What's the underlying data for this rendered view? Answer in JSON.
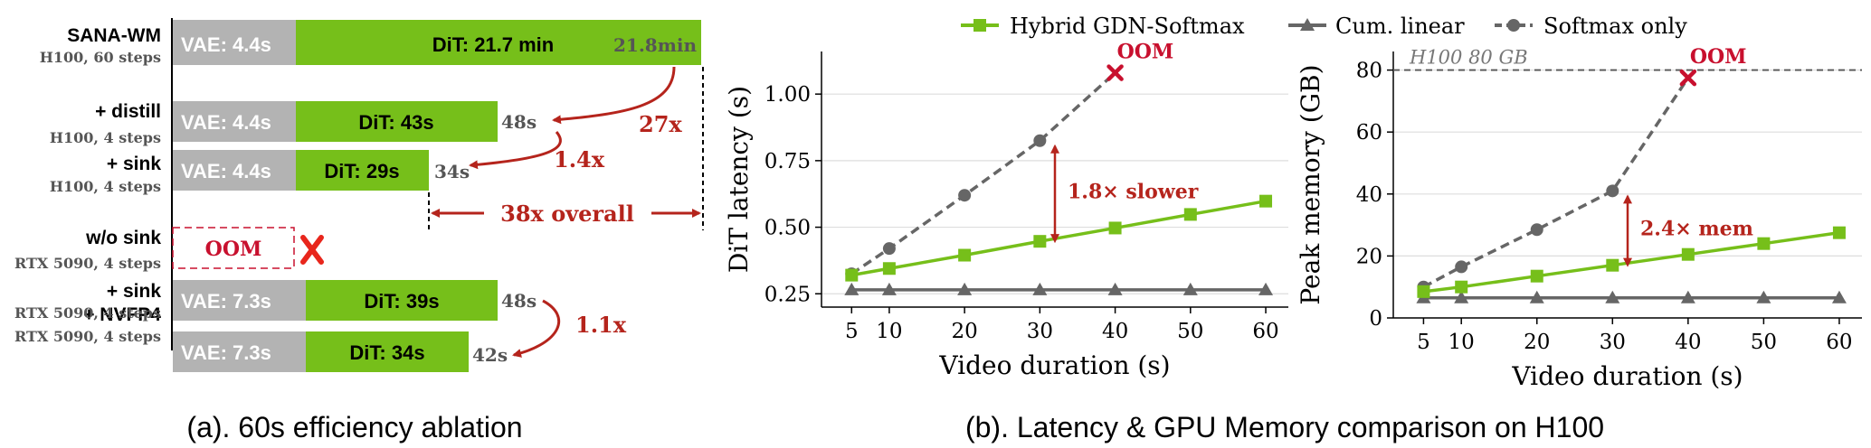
{
  "colors": {
    "vae": "#b3b3b3",
    "dit": "#76bf1a",
    "annotation": "#b5241c",
    "oom_red": "#c8102e",
    "cross": "#e8261c",
    "hybrid": "#76bf1a",
    "linear": "#666666",
    "softmax": "#666666",
    "sink_text": "#555555",
    "grid": "#dddddd"
  },
  "panel_a": {
    "caption": "(a). 60s efficiency ablation",
    "rows": [
      {
        "name": "SANA-WM",
        "sub": "H100, 60 steps",
        "vae_label": "VAE: 4.4s",
        "vae_s": 4.4,
        "dit_label": "DiT: 21.7 min",
        "total_label": "21.8min",
        "total_s": 1308
      },
      {
        "name": "+ distill",
        "sub": "H100, 4 steps",
        "vae_label": "VAE: 4.4s",
        "vae_s": 4.4,
        "dit_label": "DiT: 43s",
        "dit_s": 43,
        "total_label": "48s",
        "total_s": 48
      },
      {
        "name": "+ sink",
        "sub": "H100, 4 steps",
        "vae_label": "VAE: 4.4s",
        "vae_s": 4.4,
        "dit_label": "DiT: 29s",
        "dit_s": 29,
        "total_label": "34s",
        "total_s": 34
      },
      {
        "name": "w/o sink",
        "sub": "RTX 5090, 4 steps",
        "oom_label": "OOM"
      },
      {
        "name": "+ sink",
        "sub": "RTX 5090, 4 steps",
        "vae_label": "VAE: 7.3s",
        "vae_s": 7.3,
        "dit_label": "DiT: 39s",
        "dit_s": 39,
        "total_label": "48s",
        "total_s": 48
      },
      {
        "name": "+ NVFP4",
        "sub": "RTX 5090, 4 steps",
        "vae_label": "VAE: 7.3s",
        "vae_s": 7.3,
        "dit_label": "DiT: 34s",
        "dit_s": 34,
        "total_label": "42s",
        "total_s": 42
      }
    ],
    "speedups": {
      "a": "27x",
      "b": "1.4x",
      "overall": "38x overall",
      "c": "1.1x"
    }
  },
  "panel_b": {
    "caption": "(b). Latency & GPU Memory comparison on H100",
    "legend": [
      "Hybrid GDN-Softmax",
      "Cum. linear",
      "Softmax only"
    ]
  },
  "chart_data": [
    {
      "type": "line",
      "xlabel": "Video duration (s)",
      "ylabel": "DiT latency (s)",
      "x_ticks": [
        5,
        10,
        20,
        30,
        40,
        50,
        60
      ],
      "y_ticks": [
        0.25,
        0.5,
        0.75,
        1.0
      ],
      "y_tick_labels": [
        "0.25",
        "0.50",
        "0.75",
        "1.00"
      ],
      "xlim": [
        1,
        63
      ],
      "ylim": [
        0.2,
        1.16
      ],
      "grid": "horizontal",
      "series": [
        {
          "name": "Hybrid GDN-Softmax",
          "x": [
            5,
            10,
            20,
            30,
            40,
            50,
            60
          ],
          "y": [
            0.32,
            0.345,
            0.395,
            0.447,
            0.497,
            0.548,
            0.598
          ]
        },
        {
          "name": "Cum. linear",
          "x": [
            5,
            10,
            20,
            30,
            40,
            50,
            60
          ],
          "y": [
            0.265,
            0.265,
            0.265,
            0.265,
            0.265,
            0.265,
            0.265
          ]
        },
        {
          "name": "Softmax only",
          "x": [
            5,
            10,
            20,
            30
          ],
          "y": [
            0.325,
            0.42,
            0.62,
            0.825
          ],
          "oom_x": 40,
          "oom_y": 1.08
        }
      ],
      "oom_label": "OOM",
      "annotation": {
        "text": "1.8× slower",
        "x": 32,
        "y_from": 0.447,
        "y_to": 0.825
      }
    },
    {
      "type": "line",
      "xlabel": "Video duration (s)",
      "ylabel": "Peak memory (GB)",
      "x_ticks": [
        5,
        10,
        20,
        30,
        40,
        50,
        60
      ],
      "y_ticks": [
        0,
        20,
        40,
        60,
        80
      ],
      "y_tick_labels": [
        "0",
        "20",
        "40",
        "60",
        "80"
      ],
      "xlim": [
        1,
        63
      ],
      "ylim": [
        0,
        86
      ],
      "grid": "horizontal",
      "series": [
        {
          "name": "Hybrid GDN-Softmax",
          "x": [
            5,
            10,
            20,
            30,
            40,
            50,
            60
          ],
          "y": [
            8.5,
            10,
            13.5,
            17,
            20.5,
            24,
            27.5
          ]
        },
        {
          "name": "Cum. linear",
          "x": [
            5,
            10,
            20,
            30,
            40,
            50,
            60
          ],
          "y": [
            6.5,
            6.5,
            6.5,
            6.5,
            6.5,
            6.5,
            6.5
          ]
        },
        {
          "name": "Softmax only",
          "x": [
            5,
            10,
            20,
            30
          ],
          "y": [
            10,
            16.5,
            28.5,
            41
          ],
          "oom_x": 40,
          "oom_y": 77.5
        }
      ],
      "oom_label": "OOM",
      "hline": {
        "y": 80,
        "label": "H100 80 GB"
      },
      "annotation": {
        "text": "2.4× mem",
        "x": 32,
        "y_from": 17,
        "y_to": 41
      }
    }
  ]
}
